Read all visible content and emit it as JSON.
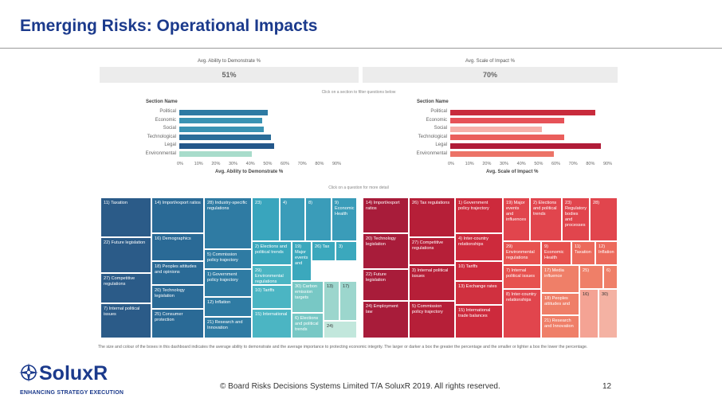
{
  "slide": {
    "title": "Emerging Risks: Operational Impacts",
    "page_number": "12",
    "copyright": "© Board Risks Decisions Systems Limited T/A SoluxR 2019. All rights reserved.",
    "footnote": "The size and colour of the boxes in this dashboard indicates the average ability to demonstrate and the average importance to protecting economic integrity. The larger or darker a box the greater the percentage and the smaller or lighter a box the lower the percentage.",
    "logo": {
      "name": "SoluxR",
      "tagline": "ENHANCING STRATEGY EXECUTION"
    }
  },
  "dashboard": {
    "metric_left": {
      "label": "Avg. Ability to Demonstrate %",
      "value": "51%"
    },
    "metric_right": {
      "label": "Avg. Scale of Impact %",
      "value": "70%"
    },
    "hint_section": "Click on a section to filter questions below",
    "hint_question": "Click on a question for more detail",
    "section_header": "Section Name",
    "ticks": [
      "0%",
      "10%",
      "20%",
      "30%",
      "40%",
      "50%",
      "60%",
      "70%",
      "80%",
      "90%"
    ],
    "left_axis_title": "Avg. Ability to Demonstrate %",
    "right_axis_title": "Avg. Scale of Impact %"
  },
  "chart_data": [
    {
      "type": "bar",
      "orientation": "horizontal",
      "categories": [
        "Political",
        "Economic",
        "Social",
        "Technological",
        "Legal",
        "Environmental"
      ],
      "values": [
        51,
        48,
        49,
        53,
        55,
        42
      ],
      "colors": [
        "#2d7aa3",
        "#3a93b3",
        "#3a93b3",
        "#2a6d99",
        "#23578a",
        "#a8dccb"
      ],
      "xlabel": "Avg. Ability to Demonstrate %",
      "ylabel": "Section Name",
      "xlim": [
        0,
        90
      ]
    },
    {
      "type": "bar",
      "orientation": "horizontal",
      "categories": [
        "Political",
        "Economic",
        "Social",
        "Technological",
        "Legal",
        "Environmental"
      ],
      "values": [
        84,
        66,
        53,
        66,
        87,
        60
      ],
      "colors": [
        "#c82b3c",
        "#e65258",
        "#f6b0aa",
        "#ea5e5c",
        "#b01c38",
        "#ec7367"
      ],
      "xlabel": "Avg. Scale of Impact %",
      "ylabel": "Section Name",
      "xlim": [
        0,
        90
      ]
    }
  ],
  "treemap_left": [
    {
      "label": "11) Taxation",
      "color": "#2b5b88"
    },
    {
      "label": "14) Import/export ratios",
      "color": "#2a6a96"
    },
    {
      "label": "28) Industry-specific regulations",
      "color": "#2f7ba3"
    },
    {
      "label": "23)",
      "color": "#39a5bd"
    },
    {
      "label": "4)",
      "color": "#3a9cb9"
    },
    {
      "label": "8)",
      "color": "#3a9cb9"
    },
    {
      "label": "9) Economic Health",
      "color": "#3a9cb9"
    },
    {
      "label": "22) Future legislation",
      "color": "#2b5b88"
    },
    {
      "label": "16) Demographics",
      "color": "#2a6a96"
    },
    {
      "label": "5) Commission policy trajectory",
      "color": "#2f7ba3"
    },
    {
      "label": "2) Elections and political trends",
      "color": "#3ba8bd"
    },
    {
      "label": "19) Major events and",
      "color": "#3ba8bd"
    },
    {
      "label": "26) Tax",
      "color": "#3ba8bd"
    },
    {
      "label": "3)",
      "color": "#3ba8bd"
    },
    {
      "label": "18) Peoples attitudes and opinions",
      "color": "#2a6a96"
    },
    {
      "label": "27) Competitive regulations",
      "color": "#2b5b88"
    },
    {
      "label": "1) Government policy trajectory",
      "color": "#2f7ba3"
    },
    {
      "label": "29) Environmental regulations",
      "color": "#4bb5c3"
    },
    {
      "label": "20) Technology legislation",
      "color": "#2a6a96"
    },
    {
      "label": "12) Inflation",
      "color": "#2f7ba3"
    },
    {
      "label": "10) Tariffs",
      "color": "#4bb5c3"
    },
    {
      "label": "30) Carbon emission targets",
      "color": "#78c8c5"
    },
    {
      "label": "13)",
      "color": "#9cd6cd"
    },
    {
      "label": "17)",
      "color": "#9cd6cd"
    },
    {
      "label": "7) Internal political issues",
      "color": "#2b5b88"
    },
    {
      "label": "25) Consumer protection",
      "color": "#2a6a96"
    },
    {
      "label": "21) Research and Innovation",
      "color": "#2f7ba3"
    },
    {
      "label": "15) International",
      "color": "#4bb5c3"
    },
    {
      "label": "6) Elections and political trends",
      "color": "#78c8c5"
    },
    {
      "label": "24)",
      "color": "#c2e7dc"
    }
  ],
  "treemap_right": [
    {
      "label": "14) Import/export ratios",
      "color": "#a81c3a"
    },
    {
      "label": "26) Tax regulations",
      "color": "#b61f38"
    },
    {
      "label": "1) Government policy trajectory",
      "color": "#cd2a3c"
    },
    {
      "label": "19) Major events and influences",
      "color": "#e1454d"
    },
    {
      "label": "2) Elections and political trends",
      "color": "#e1454d"
    },
    {
      "label": "23) Regulatory bodies and processes",
      "color": "#e1454d"
    },
    {
      "label": "28)",
      "color": "#e1454d"
    },
    {
      "label": "20) Technology legislation",
      "color": "#a81c3a"
    },
    {
      "label": "27) Competitive regulations",
      "color": "#b61f38"
    },
    {
      "label": "4) Inter-country relationships",
      "color": "#cd2a3c"
    },
    {
      "label": "29) Environmental regulations",
      "color": "#e7524f"
    },
    {
      "label": "9) Economic Health",
      "color": "#e7524f"
    },
    {
      "label": "11) Taxation",
      "color": "#ec6a5c"
    },
    {
      "label": "12) Inflation",
      "color": "#ec6a5c"
    },
    {
      "label": "10) Tariffs",
      "color": "#cd2a3c"
    },
    {
      "label": "22) Future legislation",
      "color": "#a81c3a"
    },
    {
      "label": "3) Internal political issues",
      "color": "#b61f38"
    },
    {
      "label": "7) Internal political issues",
      "color": "#e7524f"
    },
    {
      "label": "17) Media influence",
      "color": "#ef7f68"
    },
    {
      "label": "25)",
      "color": "#ef7f68"
    },
    {
      "label": "6)",
      "color": "#ef7f68"
    },
    {
      "label": "13) Exchange rates",
      "color": "#d0303f"
    },
    {
      "label": "18) Peoples attitudes and",
      "color": "#ef7f68"
    },
    {
      "label": "24) Employment law",
      "color": "#a81c3a"
    },
    {
      "label": "5) Commission policy trajectory",
      "color": "#b61f38"
    },
    {
      "label": "15) International trade balances",
      "color": "#cd2a3c"
    },
    {
      "label": "8) Inter-country relationships",
      "color": "#e1454d"
    },
    {
      "label": "21) Research and Innovation",
      "color": "#ef7f68"
    },
    {
      "label": "16)",
      "color": "#f4a394"
    },
    {
      "label": "30)",
      "color": "#f4b2a3"
    }
  ]
}
